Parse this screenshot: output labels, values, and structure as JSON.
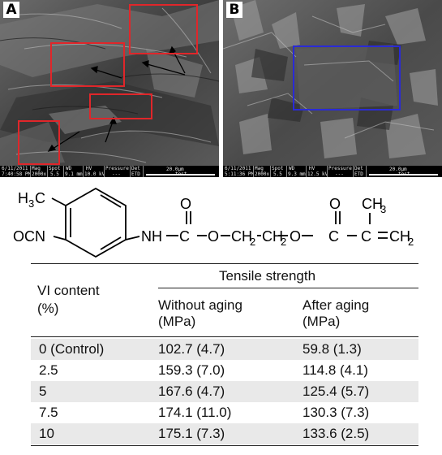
{
  "panels": [
    {
      "letter": "A",
      "date": "6/11/2011",
      "time": "7:40:58 PM",
      "mag": "2000x",
      "spot": "5.5",
      "wd": "9.1 mm",
      "hv": "10.0 kV",
      "pressure": "---",
      "det": "ETD",
      "label": "test",
      "scale": "20.0µm",
      "header_mag": "Mag",
      "header_spot": "Spot",
      "header_wd": "WD",
      "header_hv": "HV",
      "header_pressure": "Pressure",
      "header_det": "Det"
    },
    {
      "letter": "B",
      "date": "6/11/2011",
      "time": "5:11:36 PM",
      "mag": "2000x",
      "spot": "5.5",
      "wd": "9.3 mm",
      "hv": "12.5 kV",
      "pressure": "---",
      "det": "ETD",
      "label": "test",
      "scale": "20.0µm",
      "header_mag": "Mag",
      "header_spot": "Spot",
      "header_wd": "WD",
      "header_hv": "HV",
      "header_pressure": "Pressure",
      "header_det": "Det"
    }
  ],
  "structure": {
    "h3c": "H",
    "h3c_sub": "3",
    "h3c_c": "C",
    "ocn": "OCN",
    "nh": "NH",
    "c1": "C",
    "o_carbonyl1": "O",
    "o1": "O",
    "ch2a": "CH",
    "ch2a_sub": "2",
    "ch2b": "CH",
    "ch2b_sub": "2",
    "o2": "O",
    "c2": "C",
    "o_carbonyl2": "O",
    "c3": "C",
    "ch3": "CH",
    "ch3_sub": "3",
    "ch2c": "CH",
    "ch2c_sub": "2"
  },
  "table": {
    "col1_header": [
      "VI content",
      "(%)"
    ],
    "group_header": "Tensile strength",
    "col2_header": [
      "Without aging",
      "(MPa)"
    ],
    "col3_header": [
      "After aging",
      "(MPa)"
    ],
    "rows": [
      {
        "vi": "0 (Control)",
        "without": "102.7 (4.7)",
        "after": "59.8 (1.3)"
      },
      {
        "vi": "2.5",
        "without": "159.3 (7.0)",
        "after": "114.8 (4.1)"
      },
      {
        "vi": "5",
        "without": "167.6 (4.7)",
        "after": "125.4 (5.7)"
      },
      {
        "vi": "7.5",
        "without": "174.1 (11.0)",
        "after": "130.3 (7.3)"
      },
      {
        "vi": "10",
        "without": "175.1 (7.3)",
        "after": "133.6 (2.5)"
      }
    ]
  }
}
